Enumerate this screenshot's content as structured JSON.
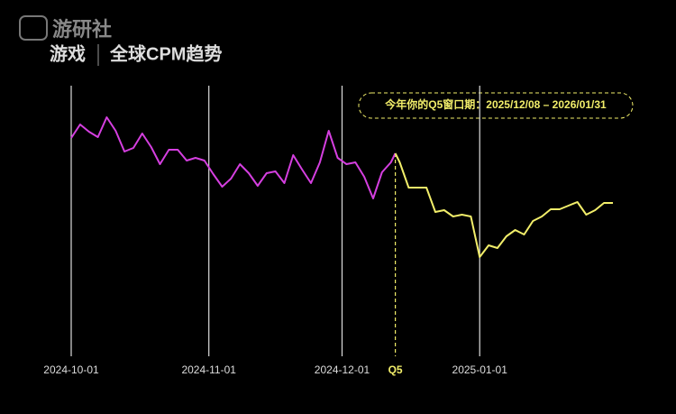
{
  "chart_data": {
    "type": "line",
    "watermark": "游研社",
    "section": "游戏",
    "title": "全球CPM趋势",
    "annotation": "今年你的Q5窗口期：2025/12/08 – 2026/01/31",
    "marker": {
      "x": "2024-12-13",
      "label": "Q5",
      "color": "#f2ee6a"
    },
    "x": [
      "2024-10-01",
      "2024-10-03",
      "2024-10-05",
      "2024-10-07",
      "2024-10-09",
      "2024-10-11",
      "2024-10-13",
      "2024-10-15",
      "2024-10-17",
      "2024-10-19",
      "2024-10-21",
      "2024-10-23",
      "2024-10-25",
      "2024-10-27",
      "2024-10-29",
      "2024-10-31",
      "2024-11-02",
      "2024-11-04",
      "2024-11-06",
      "2024-11-08",
      "2024-11-10",
      "2024-11-12",
      "2024-11-14",
      "2024-11-16",
      "2024-11-18",
      "2024-11-20",
      "2024-11-22",
      "2024-11-24",
      "2024-11-26",
      "2024-11-28",
      "2024-11-30",
      "2024-12-02",
      "2024-12-04",
      "2024-12-06",
      "2024-12-08",
      "2024-12-10",
      "2024-12-12",
      "2024-12-13",
      "2024-12-14",
      "2024-12-16",
      "2024-12-18",
      "2024-12-20",
      "2024-12-22",
      "2024-12-24",
      "2024-12-26",
      "2024-12-28",
      "2024-12-30",
      "2025-01-01",
      "2025-01-03",
      "2025-01-05",
      "2025-01-07",
      "2025-01-09",
      "2025-01-11",
      "2025-01-13",
      "2025-01-15",
      "2025-01-17",
      "2025-01-19",
      "2025-01-21",
      "2025-01-23",
      "2025-01-25",
      "2025-01-27",
      "2025-01-29",
      "2025-01-31"
    ],
    "series": [
      {
        "color": "#d53fe0",
        "values": [
          137,
          152,
          144,
          138,
          160,
          145,
          122,
          126,
          142,
          127,
          108,
          124,
          124,
          112,
          115,
          112,
          97,
          83,
          92,
          108,
          98,
          84,
          98,
          100,
          87,
          118,
          102,
          87,
          110,
          145,
          115,
          108,
          110,
          94,
          70,
          99,
          110,
          120,
          null,
          null,
          null,
          null,
          null,
          null,
          null,
          null,
          null,
          null,
          null,
          null,
          null,
          null,
          null,
          null,
          null,
          null,
          null,
          null,
          null,
          null,
          null,
          null,
          null
        ]
      },
      {
        "color": "#f2ee6a",
        "values": [
          null,
          null,
          null,
          null,
          null,
          null,
          null,
          null,
          null,
          null,
          null,
          null,
          null,
          null,
          null,
          null,
          null,
          null,
          null,
          null,
          null,
          null,
          null,
          null,
          null,
          null,
          null,
          null,
          null,
          null,
          null,
          null,
          null,
          null,
          null,
          null,
          null,
          120,
          110,
          82,
          82,
          82,
          55,
          57,
          50,
          52,
          50,
          5,
          18,
          15,
          28,
          35,
          30,
          45,
          50,
          58,
          58,
          62,
          66,
          52,
          57,
          65,
          65
        ]
      }
    ],
    "xlim": [
      "2024-10-01",
      "2025-01-31"
    ],
    "xticks": [
      "2024-10-01",
      "2024-11-01",
      "2024-12-01",
      "2025-01-01"
    ],
    "ylim": [
      -105,
      290
    ],
    "grid": true
  }
}
